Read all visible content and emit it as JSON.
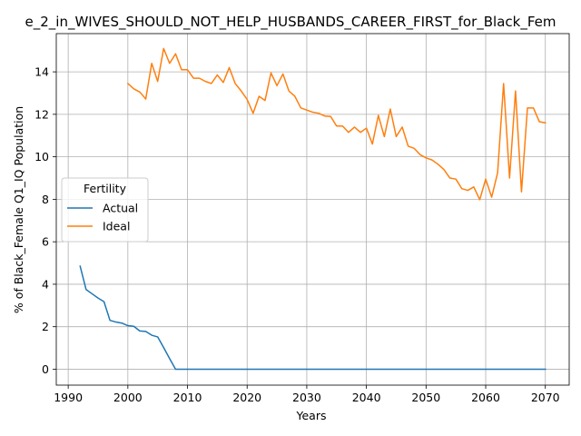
{
  "chart_data": {
    "type": "line",
    "title": "e_2_in_WIVES_SHOULD_NOT_HELP_HUSBANDS_CAREER_FIRST_for_Black_Fem",
    "xlabel": "Years",
    "ylabel": "% of Black_Female Q1_IQ Population",
    "xlim": [
      1988,
      2074
    ],
    "ylim": [
      -0.75,
      15.8
    ],
    "xticks": [
      1990,
      2000,
      2010,
      2020,
      2030,
      2040,
      2050,
      2060,
      2070
    ],
    "yticks": [
      0,
      2,
      4,
      6,
      8,
      10,
      12,
      14
    ],
    "grid": true,
    "legend": {
      "title": "Fertility",
      "placement": "center-left"
    },
    "colors": {
      "Actual": "#1f77b4",
      "Ideal": "#ff7f0e"
    },
    "series": [
      {
        "name": "Actual",
        "x": [
          1992,
          1993,
          1994,
          1995,
          1996,
          1997,
          1998,
          1999,
          2000,
          2001,
          2002,
          2003,
          2004,
          2005,
          2006,
          2007,
          2008,
          2009,
          2010,
          2020,
          2030,
          2040,
          2050,
          2060,
          2070
        ],
        "values": [
          4.85,
          3.75,
          3.55,
          3.35,
          3.18,
          2.3,
          2.22,
          2.17,
          2.05,
          2.02,
          1.8,
          1.78,
          1.6,
          1.52,
          1.02,
          0.5,
          0.0,
          0.0,
          0.0,
          0.0,
          0.0,
          0.0,
          0.0,
          0.0,
          0.0
        ]
      },
      {
        "name": "Ideal",
        "x": [
          2000,
          2001,
          2002,
          2003,
          2004,
          2005,
          2006,
          2007,
          2008,
          2009,
          2010,
          2011,
          2012,
          2013,
          2014,
          2015,
          2016,
          2017,
          2018,
          2019,
          2020,
          2021,
          2022,
          2023,
          2024,
          2025,
          2026,
          2027,
          2028,
          2029,
          2030,
          2031,
          2032,
          2033,
          2034,
          2035,
          2036,
          2037,
          2038,
          2039,
          2040,
          2041,
          2042,
          2043,
          2044,
          2045,
          2046,
          2047,
          2048,
          2049,
          2050,
          2051,
          2052,
          2053,
          2054,
          2055,
          2056,
          2057,
          2058,
          2059,
          2060,
          2061,
          2062,
          2063,
          2064,
          2065,
          2066,
          2067,
          2068,
          2069,
          2070
        ],
        "values": [
          13.45,
          13.2,
          13.05,
          12.72,
          14.4,
          13.55,
          15.1,
          14.4,
          14.85,
          14.1,
          14.1,
          13.7,
          13.7,
          13.55,
          13.45,
          13.85,
          13.5,
          14.2,
          13.45,
          13.1,
          12.7,
          12.05,
          12.85,
          12.65,
          13.95,
          13.35,
          13.9,
          13.1,
          12.85,
          12.3,
          12.2,
          12.1,
          12.05,
          11.92,
          11.9,
          11.45,
          11.45,
          11.15,
          11.4,
          11.15,
          11.35,
          10.6,
          11.95,
          10.95,
          12.25,
          10.95,
          11.4,
          10.5,
          10.4,
          10.1,
          9.95,
          9.85,
          9.65,
          9.4,
          9.0,
          8.95,
          8.5,
          8.42,
          8.58,
          7.98,
          8.95,
          8.1,
          9.25,
          13.45,
          9.0,
          13.1,
          8.35,
          12.3,
          12.3,
          11.65,
          11.6
        ]
      }
    ]
  }
}
